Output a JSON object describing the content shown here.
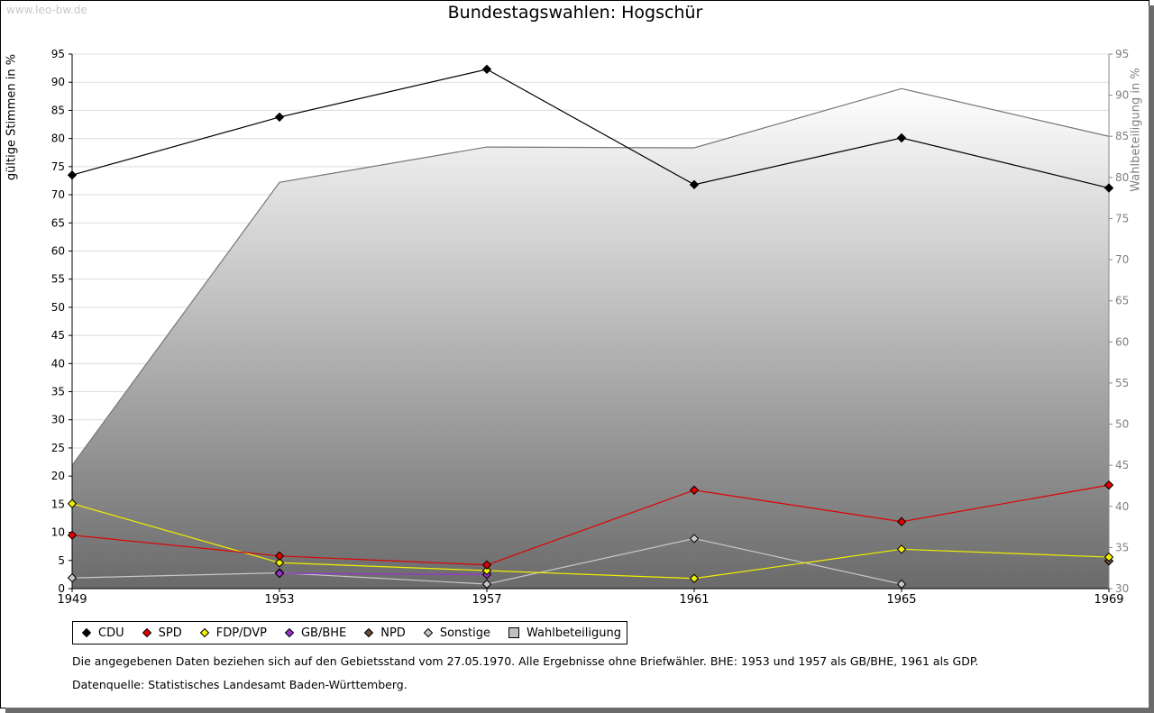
{
  "watermark": "www.leo-bw.de",
  "chart_data": {
    "type": "line",
    "title": "Bundestagswahlen: Hogschür",
    "ylabel": "gültige Stimmen in %",
    "y2label": "Wahlbeteiligung in %",
    "x": [
      "1949",
      "1953",
      "1957",
      "1961",
      "1965",
      "1969"
    ],
    "ylim": [
      0,
      95
    ],
    "y2lim": [
      30,
      95
    ],
    "yticks": [
      "0",
      "5",
      "10",
      "15",
      "20",
      "25",
      "30",
      "35",
      "40",
      "45",
      "50",
      "55",
      "60",
      "65",
      "70",
      "75",
      "80",
      "85",
      "90",
      "95"
    ],
    "y2ticks": [
      "30",
      "35",
      "40",
      "45",
      "50",
      "55",
      "60",
      "65",
      "70",
      "75",
      "80",
      "85",
      "90",
      "95"
    ],
    "series": [
      {
        "name": "CDU",
        "color": "#000000",
        "values": [
          73.5,
          83.8,
          92.3,
          71.8,
          80.1,
          71.2
        ]
      },
      {
        "name": "SPD",
        "color": "#e00000",
        "values": [
          9.5,
          5.8,
          4.2,
          17.5,
          11.9,
          18.4
        ]
      },
      {
        "name": "FDP/DVP",
        "color": "#f0f000",
        "values": [
          15.1,
          4.6,
          3.2,
          1.8,
          7.0,
          5.6
        ]
      },
      {
        "name": "GB/BHE",
        "color": "#9933cc",
        "values": [
          null,
          2.7,
          2.5,
          null,
          null,
          null
        ]
      },
      {
        "name": "NPD",
        "color": "#6b4a3a",
        "values": [
          null,
          null,
          null,
          null,
          null,
          4.9
        ]
      },
      {
        "name": "Sonstige",
        "color": "#c8c8c8",
        "values": [
          1.9,
          2.8,
          0.8,
          8.9,
          0.8,
          null
        ]
      }
    ],
    "turnout": {
      "name": "Wahlbeteiligung",
      "axis": "right",
      "values": [
        45.0,
        79.4,
        83.7,
        83.6,
        90.8,
        85.0
      ]
    },
    "legend_position": "bottom"
  },
  "notes": {
    "line1": "Die angegebenen Daten beziehen sich auf den Gebietsstand vom 27.05.1970. Alle Ergebnisse ohne Briefwähler. BHE: 1953 und 1957 als GB/BHE, 1961 als GDP.",
    "line2": "Datenquelle: Statistisches Landesamt Baden-Württemberg."
  }
}
